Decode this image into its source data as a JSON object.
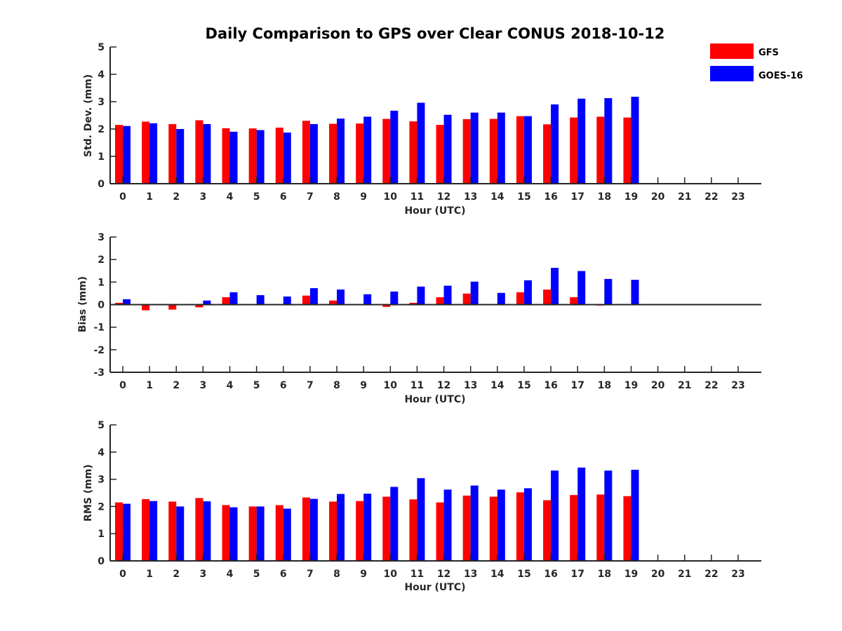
{
  "title": "Daily Comparison to GPS over Clear CONUS 2018-10-12",
  "colors": {
    "gfs": "#ff0000",
    "goes": "#0000ff",
    "axis": "#262626"
  },
  "legend": [
    {
      "name": "GFS",
      "color": "#ff0000"
    },
    {
      "name": "GOES-16",
      "color": "#0000ff"
    }
  ],
  "legend_position": "top-right",
  "chart_data": [
    {
      "type": "bar",
      "ylabel": "Std. Dev. (mm)",
      "xlabel": "Hour (UTC)",
      "ylim": [
        0,
        5
      ],
      "yticks": [
        "0",
        "1",
        "2",
        "3",
        "4",
        "5"
      ],
      "categories": [
        "0",
        "1",
        "2",
        "3",
        "4",
        "5",
        "6",
        "7",
        "8",
        "9",
        "10",
        "11",
        "12",
        "13",
        "14",
        "15",
        "16",
        "17",
        "18",
        "19",
        "20",
        "21",
        "22",
        "23"
      ],
      "series": [
        {
          "name": "GFS",
          "values": [
            2.15,
            2.27,
            2.18,
            2.32,
            2.03,
            2.02,
            2.05,
            2.3,
            2.19,
            2.2,
            2.37,
            2.28,
            2.15,
            2.36,
            2.37,
            2.47,
            2.17,
            2.42,
            2.45,
            2.42,
            null,
            null,
            null,
            null
          ]
        },
        {
          "name": "GOES-16",
          "values": [
            2.11,
            2.21,
            2.0,
            2.18,
            1.9,
            1.96,
            1.87,
            2.18,
            2.38,
            2.45,
            2.67,
            2.96,
            2.52,
            2.6,
            2.6,
            2.47,
            2.9,
            3.11,
            3.13,
            3.18,
            null,
            null,
            null,
            null
          ]
        }
      ]
    },
    {
      "type": "bar",
      "ylabel": "Bias (mm)",
      "xlabel": "Hour (UTC)",
      "ylim": [
        -3,
        3
      ],
      "yticks": [
        "-3",
        "-2",
        "-1",
        "0",
        "1",
        "2",
        "3"
      ],
      "categories": [
        "0",
        "1",
        "2",
        "3",
        "4",
        "5",
        "6",
        "7",
        "8",
        "9",
        "10",
        "11",
        "12",
        "13",
        "14",
        "15",
        "16",
        "17",
        "18",
        "19",
        "20",
        "21",
        "22",
        "23"
      ],
      "series": [
        {
          "name": "GFS",
          "values": [
            0.08,
            -0.25,
            -0.22,
            -0.12,
            0.33,
            0.0,
            0.02,
            0.4,
            0.18,
            0.02,
            -0.1,
            0.08,
            0.33,
            0.49,
            0.0,
            0.55,
            0.67,
            0.33,
            -0.04,
            0.0,
            null,
            null,
            null,
            null
          ]
        },
        {
          "name": "GOES-16",
          "values": [
            0.24,
            0.0,
            -0.03,
            0.18,
            0.55,
            0.42,
            0.36,
            0.73,
            0.67,
            0.46,
            0.58,
            0.8,
            0.84,
            1.02,
            0.52,
            1.08,
            1.63,
            1.49,
            1.14,
            1.1,
            null,
            null,
            null,
            null
          ]
        }
      ]
    },
    {
      "type": "bar",
      "ylabel": "RMS (mm)",
      "xlabel": "Hour (UTC)",
      "ylim": [
        0,
        5
      ],
      "yticks": [
        "0",
        "1",
        "2",
        "3",
        "4",
        "5"
      ],
      "categories": [
        "0",
        "1",
        "2",
        "3",
        "4",
        "5",
        "6",
        "7",
        "8",
        "9",
        "10",
        "11",
        "12",
        "13",
        "14",
        "15",
        "16",
        "17",
        "18",
        "19",
        "20",
        "21",
        "22",
        "23"
      ],
      "series": [
        {
          "name": "GFS",
          "values": [
            2.15,
            2.27,
            2.18,
            2.31,
            2.05,
            2.0,
            2.05,
            2.33,
            2.18,
            2.2,
            2.36,
            2.26,
            2.15,
            2.4,
            2.36,
            2.52,
            2.23,
            2.42,
            2.44,
            2.38,
            null,
            null,
            null,
            null
          ]
        },
        {
          "name": "GOES-16",
          "values": [
            2.1,
            2.2,
            2.0,
            2.19,
            1.97,
            2.0,
            1.92,
            2.28,
            2.46,
            2.47,
            2.72,
            3.04,
            2.62,
            2.77,
            2.62,
            2.67,
            3.32,
            3.43,
            3.32,
            3.35,
            null,
            null,
            null,
            null
          ]
        }
      ]
    }
  ]
}
